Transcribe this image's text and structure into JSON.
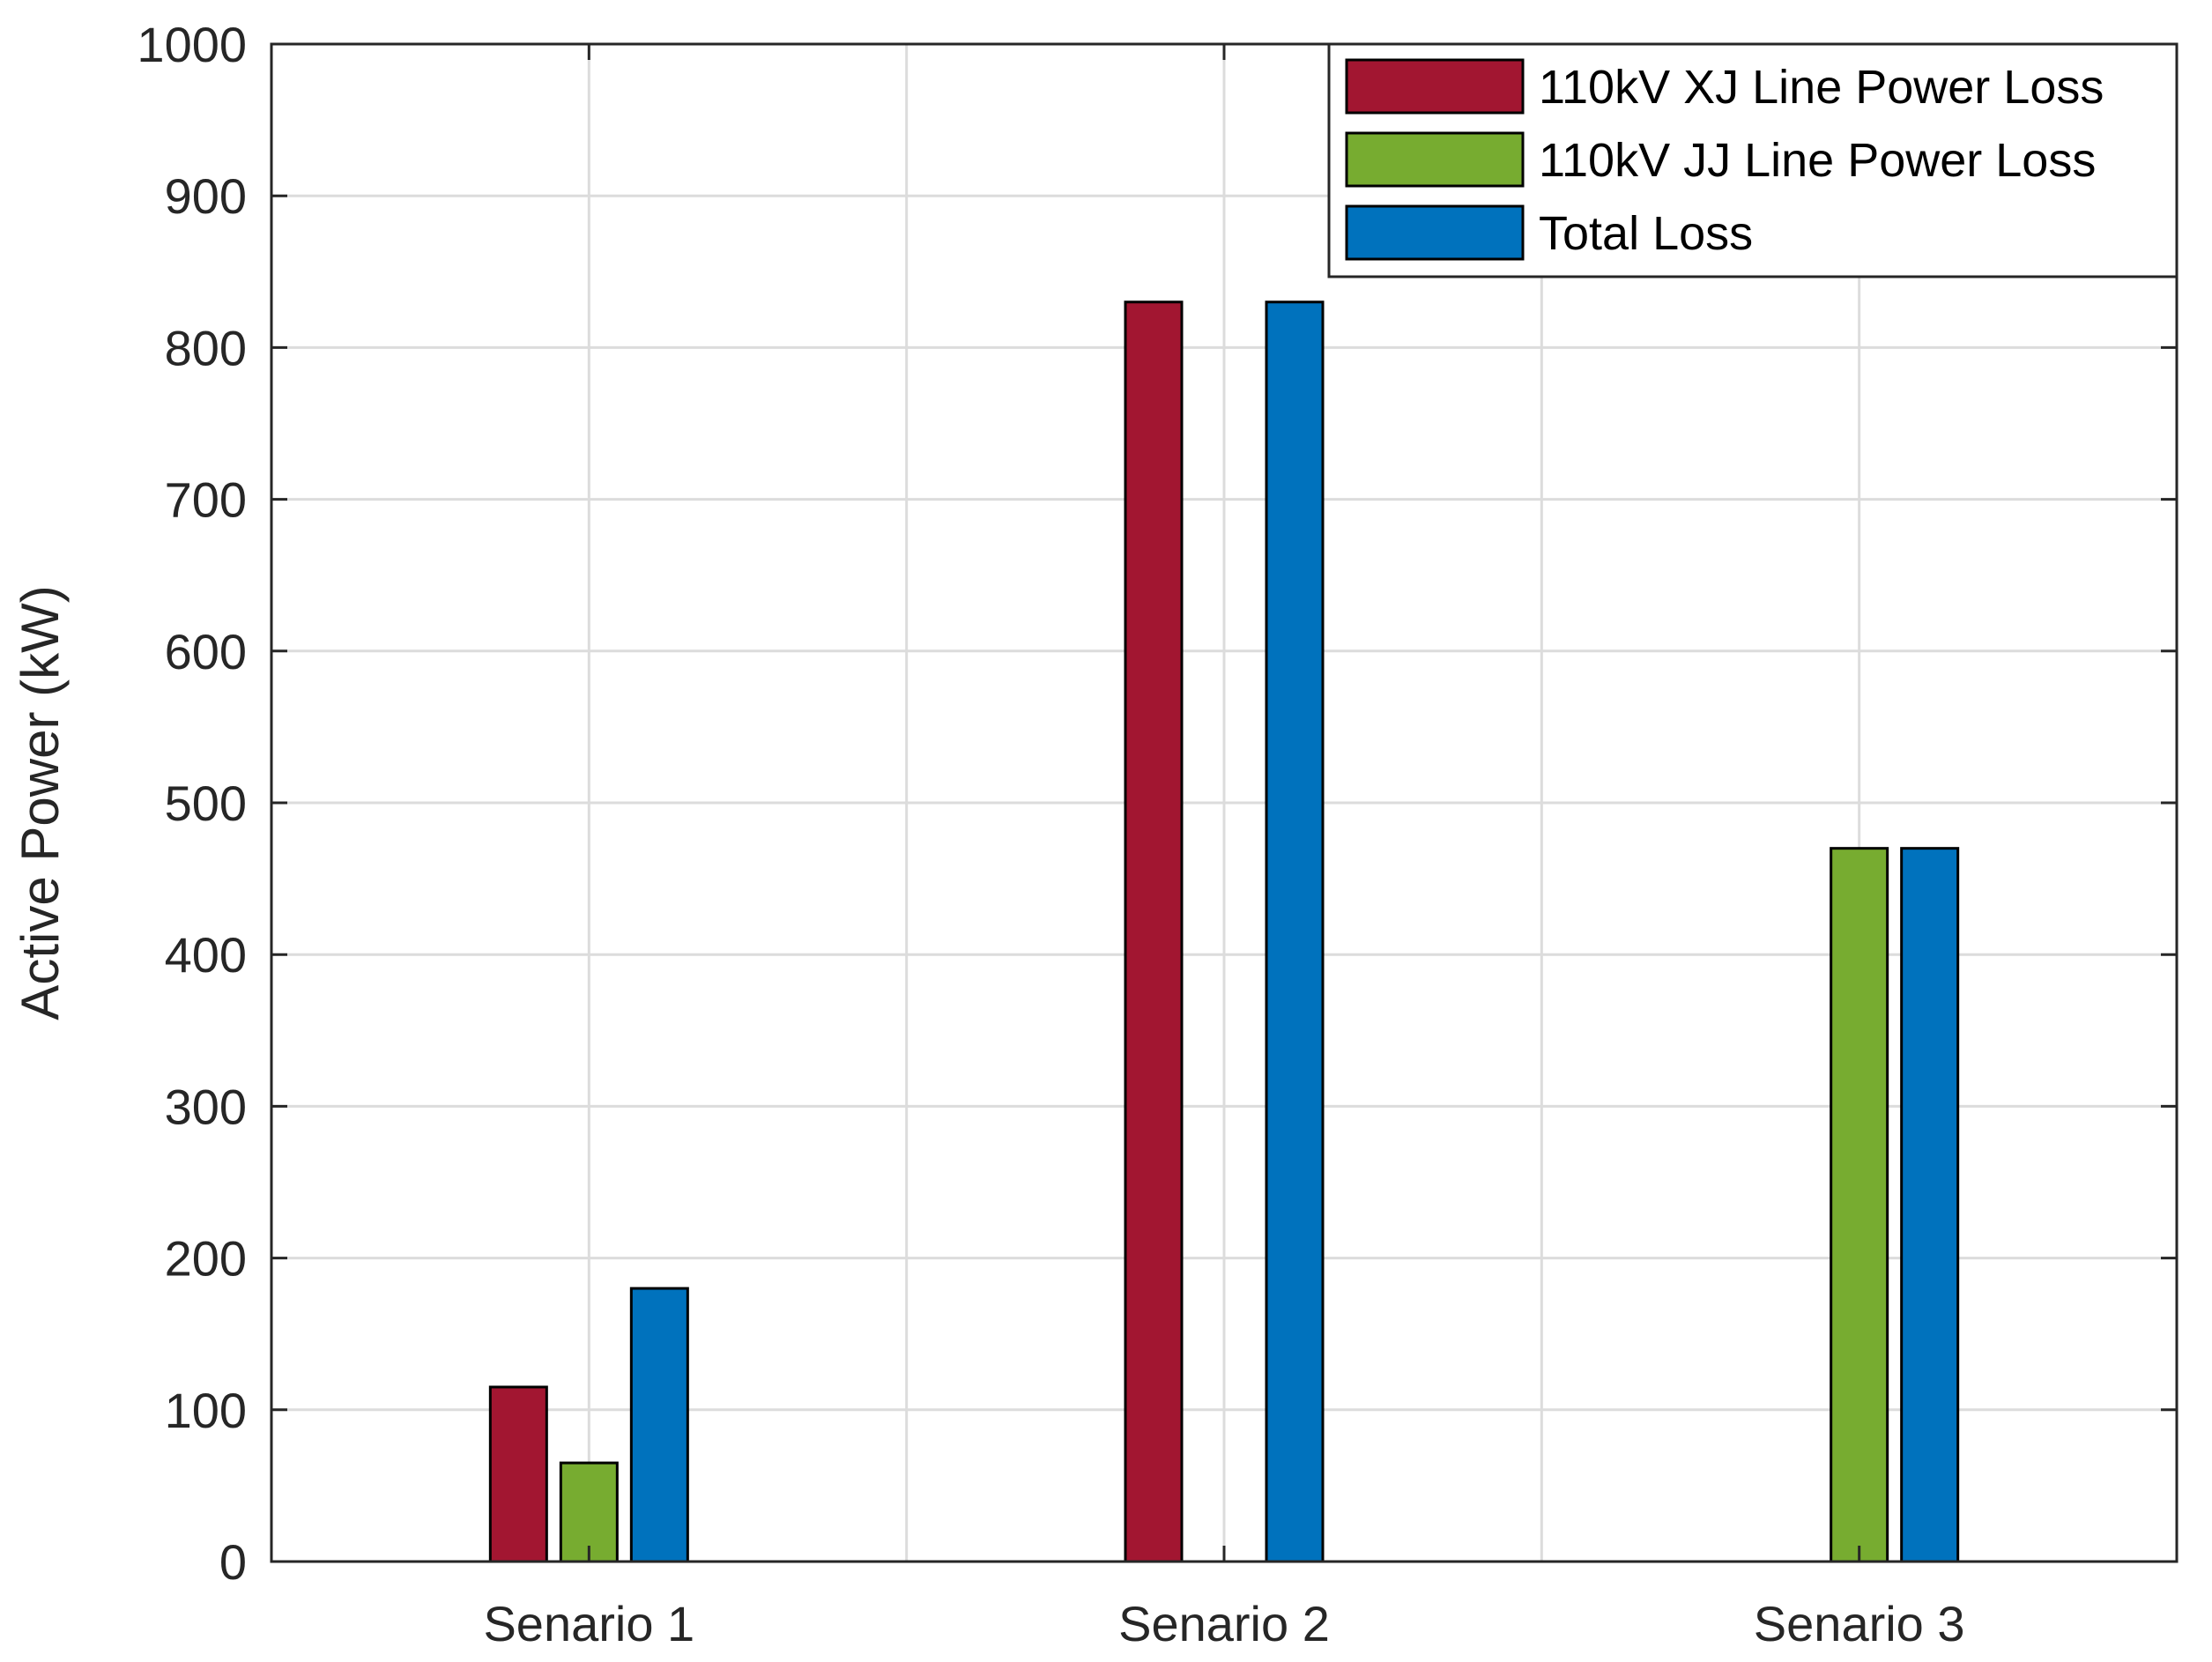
{
  "chart_data": {
    "type": "bar",
    "title": "",
    "xlabel": "",
    "ylabel": "Active Power (kW)",
    "categories": [
      "Senario 1",
      "Senario 2",
      "Senario 3"
    ],
    "ylim": [
      0,
      1000
    ],
    "yticks": [
      0,
      100,
      200,
      300,
      400,
      500,
      600,
      700,
      800,
      900,
      1000
    ],
    "grid": true,
    "legend_position": "top-right",
    "series": [
      {
        "name": "110kV XJ Line Power Loss",
        "color": "#A21631",
        "values": [
          115,
          830,
          0
        ]
      },
      {
        "name": "110kV JJ Line Power Loss",
        "color": "#77AC30",
        "values": [
          65,
          0,
          470
        ]
      },
      {
        "name": "Total Loss",
        "color": "#0072BD",
        "values": [
          180,
          830,
          470
        ]
      }
    ]
  }
}
